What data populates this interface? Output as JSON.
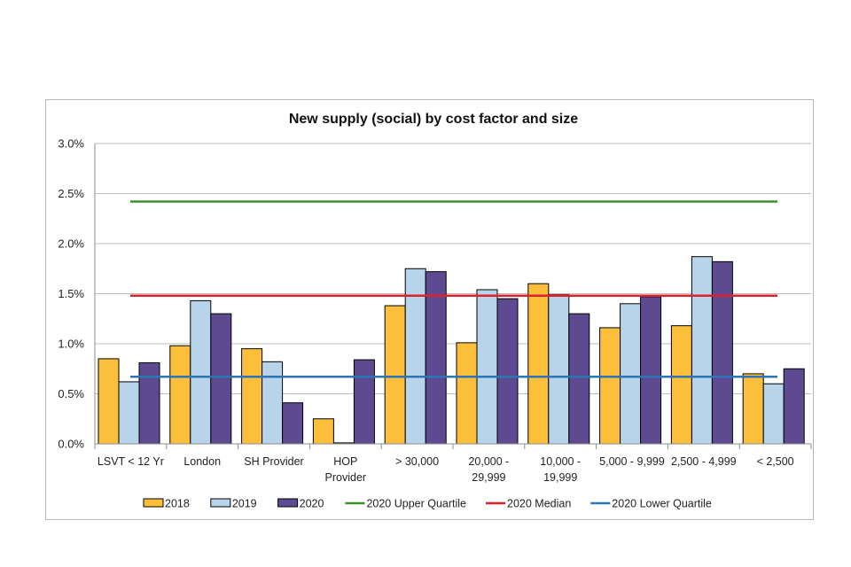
{
  "chart_data": {
    "type": "bar",
    "title": "New supply (social) by cost factor and size",
    "xlabel": "",
    "ylabel": "",
    "ylim": [
      0,
      3.0
    ],
    "y_ticks": [
      "0.0%",
      "0.5%",
      "1.0%",
      "1.5%",
      "2.0%",
      "2.5%",
      "3.0%"
    ],
    "y_tick_values": [
      0,
      0.5,
      1.0,
      1.5,
      2.0,
      2.5,
      3.0
    ],
    "grid": true,
    "legend_position": "bottom",
    "categories": [
      [
        "LSVT < 12 Yr"
      ],
      [
        "London"
      ],
      [
        "SH Provider"
      ],
      [
        "HOP",
        "Provider"
      ],
      [
        "> 30,000"
      ],
      [
        "20,000 -",
        "29,999"
      ],
      [
        "10,000 -",
        "19,999"
      ],
      [
        "5,000 - 9,999"
      ],
      [
        "2,500 - 4,999"
      ],
      [
        "< 2,500"
      ]
    ],
    "series": [
      {
        "name": "2018",
        "color": "#FBBF3B",
        "values": [
          0.85,
          0.98,
          0.95,
          0.25,
          1.38,
          1.01,
          1.6,
          1.16,
          1.18,
          0.7
        ]
      },
      {
        "name": "2019",
        "color": "#B7D4EA",
        "values": [
          0.62,
          1.43,
          0.82,
          0.01,
          1.75,
          1.54,
          1.49,
          1.4,
          1.87,
          0.6
        ]
      },
      {
        "name": "2020",
        "color": "#5E4A91",
        "values": [
          0.81,
          1.3,
          0.41,
          0.84,
          1.72,
          1.45,
          1.3,
          1.47,
          1.82,
          0.75
        ]
      }
    ],
    "reference_lines": [
      {
        "name": "2020 Upper Quartile",
        "color": "#3E8E2F",
        "value": 2.42
      },
      {
        "name": "2020 Median",
        "color": "#E0202A",
        "value": 1.48
      },
      {
        "name": "2020 Lower Quartile",
        "color": "#2E75B6",
        "value": 0.67
      }
    ]
  }
}
